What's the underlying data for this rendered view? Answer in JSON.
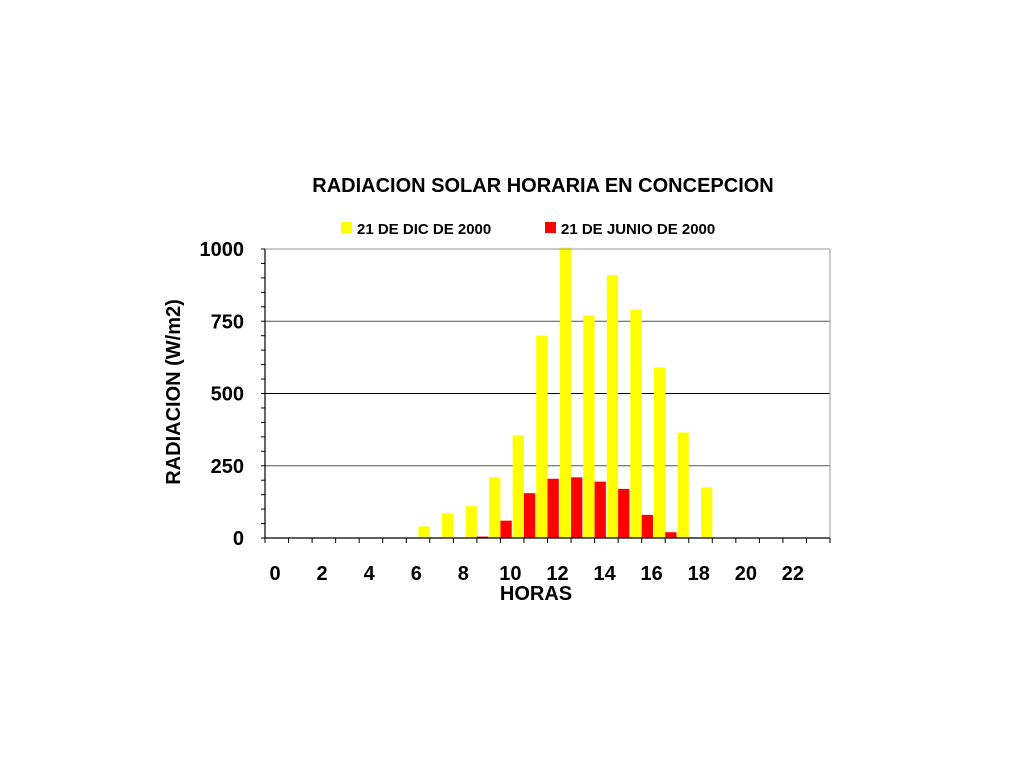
{
  "chart_data": {
    "type": "bar",
    "title": "RADIACION SOLAR HORARIA EN CONCEPCION",
    "xlabel": "HORAS",
    "ylabel": "RADIACION (W/m2)",
    "ylim": [
      0,
      1000
    ],
    "yticks": [
      0,
      250,
      500,
      750,
      1000
    ],
    "xlim": [
      0,
      24
    ],
    "xticks": [
      0,
      2,
      4,
      6,
      8,
      10,
      12,
      14,
      16,
      18,
      20,
      22
    ],
    "grid": "horizontal",
    "legend_position": "top",
    "hours": [
      7,
      8,
      9,
      10,
      11,
      12,
      13,
      14,
      15,
      16,
      17,
      18,
      19
    ],
    "series": [
      {
        "name": "21 DE DIC DE 2000",
        "color": "#ffff00",
        "values": [
          40,
          85,
          110,
          210,
          355,
          700,
          1005,
          770,
          910,
          790,
          590,
          365,
          175
        ]
      },
      {
        "name": "21 DE JUNIO DE 2000",
        "color": "#ff0000",
        "values": [
          0,
          0,
          5,
          60,
          155,
          205,
          210,
          195,
          170,
          80,
          20,
          0,
          0
        ]
      }
    ]
  }
}
